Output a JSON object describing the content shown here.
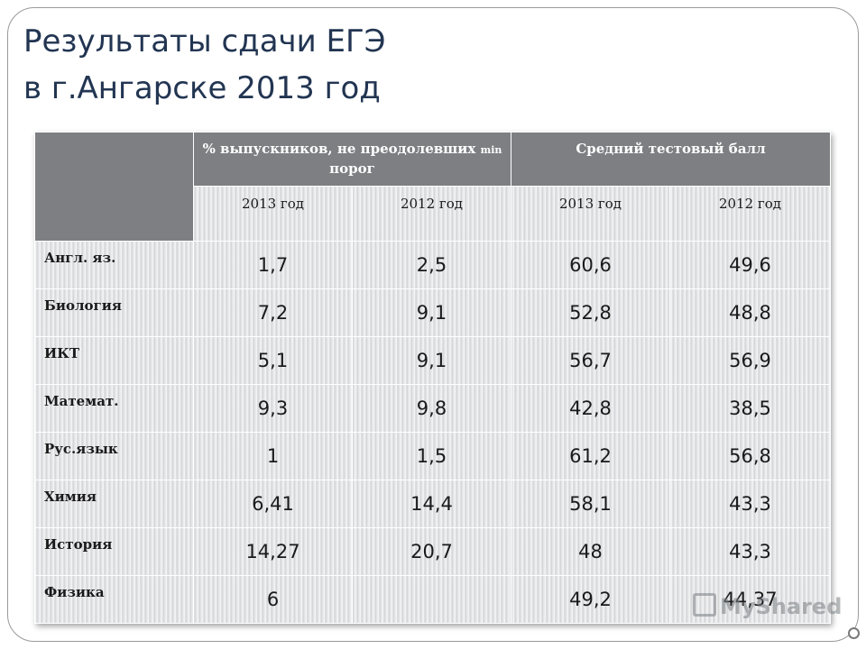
{
  "title": {
    "line1": "Результаты сдачи ЕГЭ",
    "line2": "в г.Ангарске  2013 год"
  },
  "table": {
    "group1": {
      "main": "% выпускников, не преодолевших ",
      "small": "min",
      "tail": " порог"
    },
    "group2": "Средний тестовый балл",
    "years": [
      "2013 год",
      "2012 год",
      "2013 год",
      "2012 год"
    ],
    "rows": [
      {
        "subject": "Англ. яз.",
        "values": [
          "1,7",
          "2,5",
          "60,6",
          "49,6"
        ]
      },
      {
        "subject": "Биология",
        "values": [
          "7,2",
          "9,1",
          "52,8",
          "48,8"
        ]
      },
      {
        "subject": "ИКТ",
        "values": [
          "5,1",
          "9,1",
          "56,7",
          "56,9"
        ]
      },
      {
        "subject": "Математ.",
        "values": [
          "9,3",
          "9,8",
          "42,8",
          "38,5"
        ]
      },
      {
        "subject": "Рус.язык",
        "values": [
          "1",
          "1,5",
          "61,2",
          "56,8"
        ]
      },
      {
        "subject": "Химия",
        "values": [
          "6,41",
          "14,4",
          "58,1",
          "43,3"
        ]
      },
      {
        "subject": "История",
        "values": [
          "14,27",
          "20,7",
          "48",
          "43,3"
        ]
      },
      {
        "subject": "Физика",
        "values": [
          "6",
          "",
          "49,2",
          "44,37"
        ]
      }
    ]
  },
  "watermark": {
    "text": "MyShared",
    "icon": "presentation-icon"
  }
}
